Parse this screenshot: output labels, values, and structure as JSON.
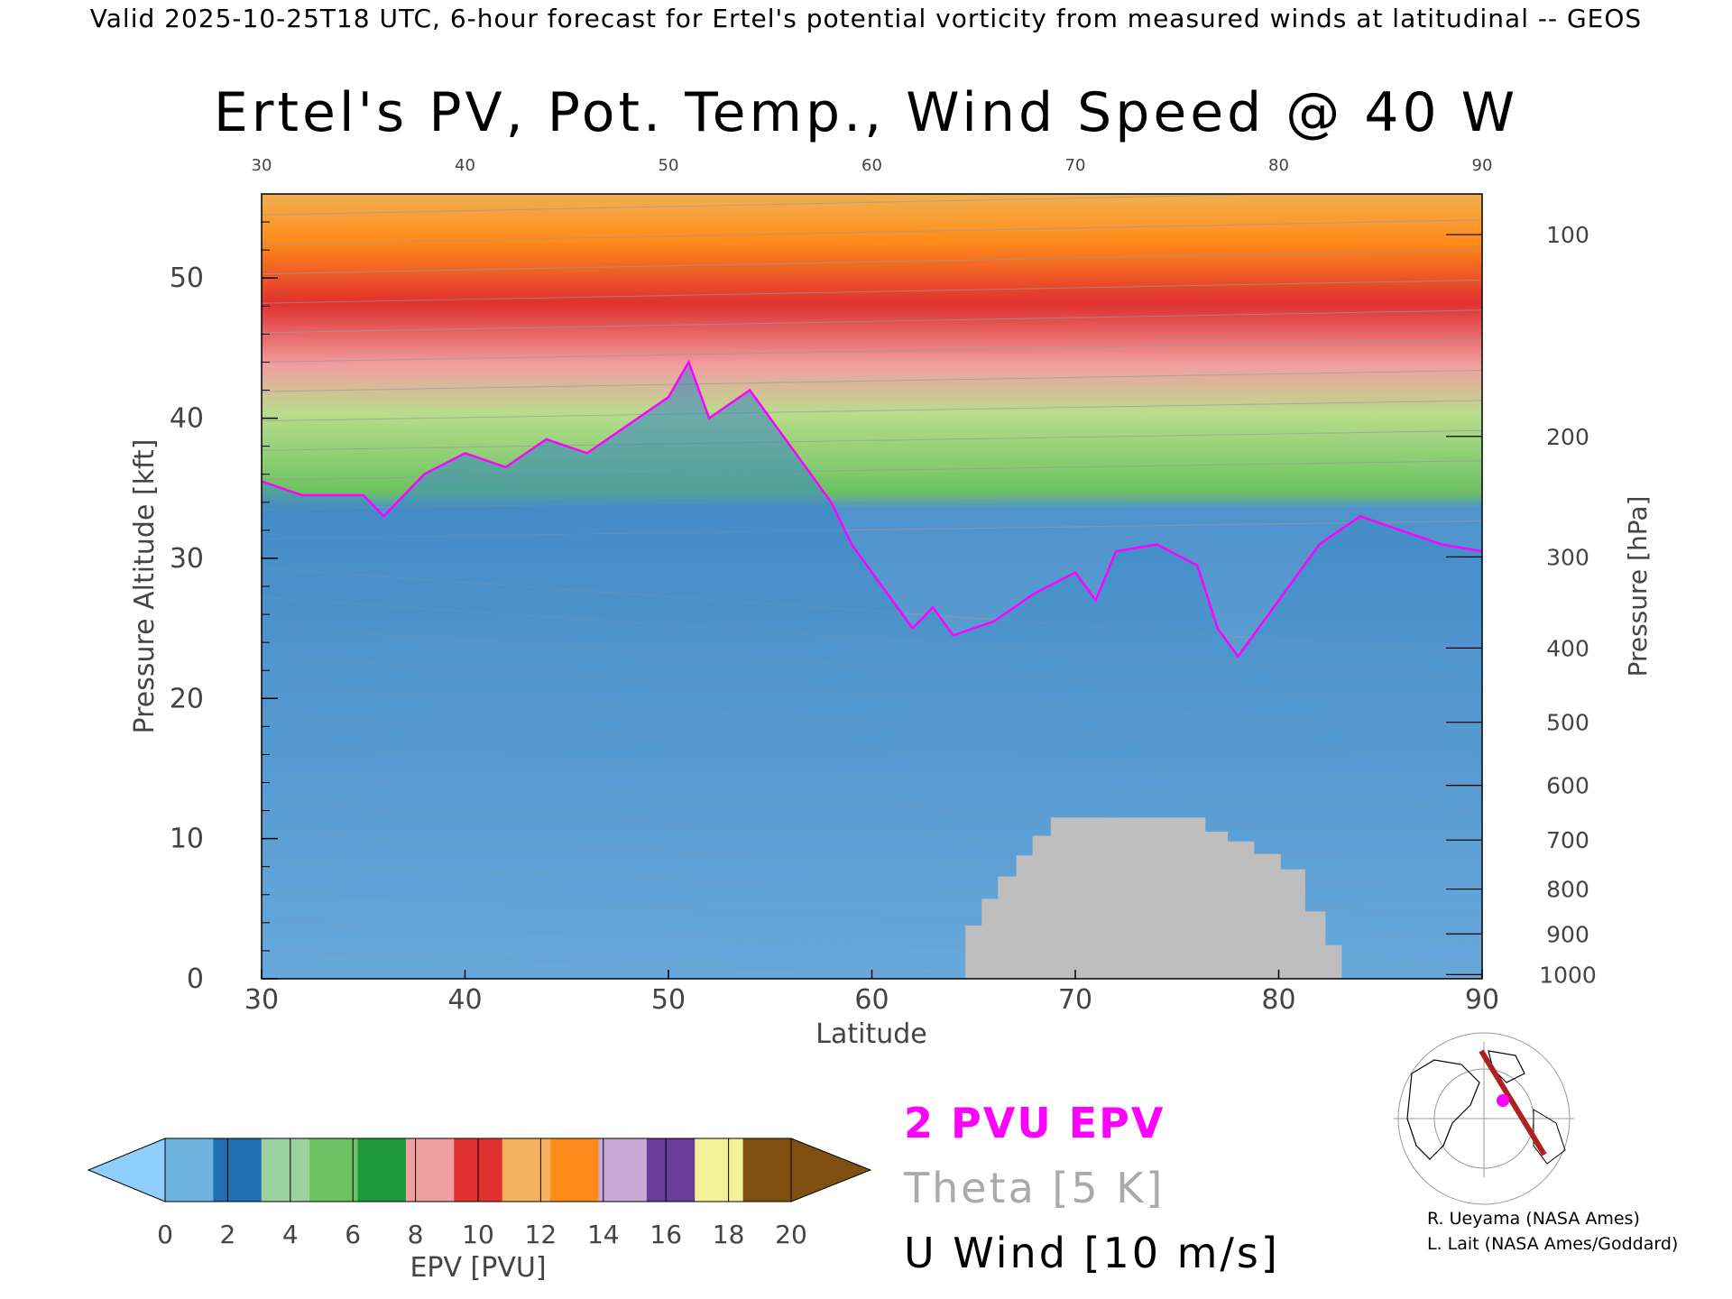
{
  "header": {
    "valid_line": "Valid 2025-10-25T18 UTC, 6-hour forecast for Ertel's potential vorticity from measured winds at latitudinal -- GEOS",
    "title": "Ertel's PV, Pot. Temp., Wind Speed @ 40 W"
  },
  "chart_data": {
    "type": "heatmap",
    "xlabel": "Latitude",
    "ylabel": "Pressure Altitude [kft]",
    "y2label": "Pressure [hPa]",
    "xlim": [
      30,
      90
    ],
    "ylim": [
      0,
      56
    ],
    "x_ticks": [
      30,
      40,
      50,
      60,
      70,
      80,
      90
    ],
    "x_tick_labels": [
      "30",
      "40",
      "50",
      "60",
      "70",
      "80",
      "90"
    ],
    "y_ticks": [
      0,
      10,
      20,
      30,
      40,
      50
    ],
    "y_tick_labels": [
      "0",
      "10",
      "20",
      "30",
      "40",
      "50"
    ],
    "pressure_ticks": [
      {
        "label": "100",
        "kft": 53.1
      },
      {
        "label": "200",
        "kft": 38.7
      },
      {
        "label": "300",
        "kft": 30.1
      },
      {
        "label": "400",
        "kft": 23.6
      },
      {
        "label": "500",
        "kft": 18.3
      },
      {
        "label": "600",
        "kft": 13.8
      },
      {
        "label": "700",
        "kft": 9.9
      },
      {
        "label": "800",
        "kft": 6.4
      },
      {
        "label": "900",
        "kft": 3.2
      },
      {
        "label": "1000",
        "kft": 0.3
      }
    ],
    "tropopause_2pvu": {
      "name": "2 PVU EPV",
      "color": "#ff00ff",
      "lat": [
        30,
        32,
        35,
        36,
        38,
        40,
        42,
        44,
        46,
        48,
        50,
        51,
        52,
        54,
        56,
        57,
        58,
        59,
        60,
        61,
        62,
        63,
        64,
        66,
        68,
        70,
        71,
        72,
        74,
        76,
        77,
        78,
        80,
        82,
        84,
        86,
        88,
        90
      ],
      "kft": [
        35.5,
        34.5,
        34.5,
        33,
        36,
        37.5,
        36.5,
        38.5,
        37.5,
        39.5,
        41.5,
        44,
        40,
        42,
        38,
        36,
        34,
        31,
        29,
        27,
        25,
        26.5,
        24.5,
        25.5,
        27.5,
        29,
        27,
        30.5,
        31,
        29.5,
        25,
        23,
        27,
        31,
        33,
        32,
        31,
        30.5
      ]
    },
    "underground_mask": {
      "color": "#bebebe",
      "lat": [
        64.6,
        64.6,
        65.4,
        65.4,
        66.2,
        66.2,
        67.1,
        67.1,
        67.9,
        67.9,
        68.8,
        68.8,
        76.4,
        76.4,
        77.5,
        77.5,
        78.8,
        78.8,
        80.1,
        80.1,
        81.3,
        81.3,
        82.3,
        82.3,
        83.1,
        83.1
      ],
      "kft": [
        0,
        3.8,
        3.8,
        5.7,
        5.7,
        7.3,
        7.3,
        8.8,
        8.8,
        10.2,
        10.2,
        11.5,
        11.5,
        10.5,
        10.5,
        9.8,
        9.8,
        8.9,
        8.9,
        7.8,
        7.8,
        4.8,
        4.8,
        2.4,
        2.4,
        0
      ]
    },
    "colorbar": {
      "label": "EPV [PVU]",
      "ticks": [
        "0",
        "2",
        "4",
        "6",
        "8",
        "10",
        "12",
        "14",
        "16",
        "18",
        "20"
      ],
      "colors": [
        "#6fb3e0",
        "#1f6fb2",
        "#9dd1a0",
        "#6cc261",
        "#1f9a3a",
        "#f0a0a0",
        "#e03030",
        "#f5b060",
        "#ff8c1a",
        "#c8a8d8",
        "#6a3d9a",
        "#f5f09a",
        "#7f5010"
      ],
      "under_color": "#8fcfff",
      "over_color": "#7f5010"
    }
  },
  "legend": {
    "pvu_label": "2 PVU EPV",
    "theta_label": "Theta [5 K]",
    "uwind_label": "U Wind [10 m/s]"
  },
  "credits": {
    "line1": "R. Ueyama (NASA Ames)",
    "line2": "L. Lait (NASA Ames/Goddard)"
  },
  "colors": {
    "tropopause": "#ff00ff",
    "theta": "#aaaaaa",
    "mask": "#bebebe"
  }
}
